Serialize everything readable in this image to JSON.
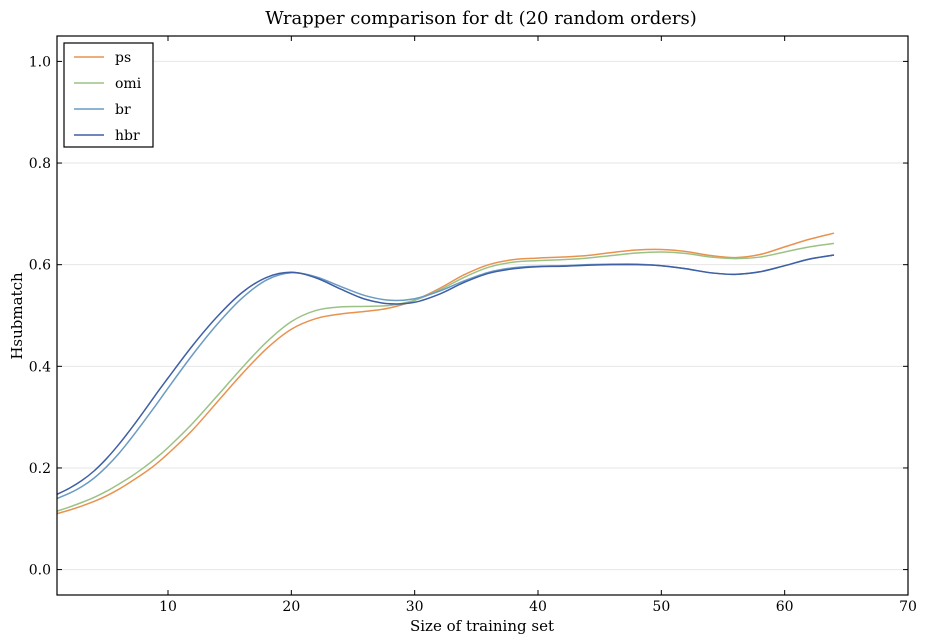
{
  "chart_data": {
    "type": "line",
    "title": "Wrapper comparison for dt (20 random orders)",
    "xlabel": "Size of training set",
    "ylabel": "Hsubmatch",
    "xlim": [
      1,
      70
    ],
    "ylim": [
      -0.05,
      1.05
    ],
    "xticks": [
      10,
      20,
      30,
      40,
      50,
      60,
      70
    ],
    "yticks": [
      0.0,
      0.2,
      0.4,
      0.6,
      0.8,
      1.0
    ],
    "xtick_labels": [
      "10",
      "20",
      "30",
      "40",
      "50",
      "60",
      "70"
    ],
    "ytick_labels": [
      "0.0",
      "0.2",
      "0.4",
      "0.6",
      "0.8",
      "1.0"
    ],
    "grid": "horizontal",
    "legend_position": "top-left",
    "series": [
      {
        "name": "ps",
        "color": "#e8924f",
        "x": [
          1,
          2,
          3,
          4,
          5,
          6,
          7,
          8,
          9,
          10,
          12,
          14,
          16,
          18,
          20,
          22,
          24,
          26,
          28,
          30,
          32,
          34,
          36,
          38,
          40,
          42,
          44,
          46,
          48,
          50,
          52,
          54,
          56,
          58,
          60,
          62,
          64
        ],
        "y": [
          0.11,
          0.117,
          0.125,
          0.134,
          0.145,
          0.158,
          0.173,
          0.189,
          0.207,
          0.228,
          0.275,
          0.33,
          0.385,
          0.435,
          0.473,
          0.494,
          0.503,
          0.508,
          0.515,
          0.53,
          0.553,
          0.58,
          0.6,
          0.61,
          0.613,
          0.615,
          0.618,
          0.624,
          0.629,
          0.63,
          0.626,
          0.618,
          0.614,
          0.62,
          0.635,
          0.65,
          0.662
        ]
      },
      {
        "name": "omi",
        "color": "#9bc285",
        "x": [
          1,
          2,
          3,
          4,
          5,
          6,
          7,
          8,
          9,
          10,
          12,
          14,
          16,
          18,
          20,
          22,
          24,
          26,
          28,
          30,
          32,
          34,
          36,
          38,
          40,
          42,
          44,
          46,
          48,
          50,
          52,
          54,
          56,
          58,
          60,
          62,
          64
        ],
        "y": [
          0.115,
          0.123,
          0.132,
          0.142,
          0.154,
          0.168,
          0.183,
          0.2,
          0.219,
          0.24,
          0.288,
          0.342,
          0.397,
          0.448,
          0.488,
          0.51,
          0.517,
          0.518,
          0.52,
          0.53,
          0.55,
          0.575,
          0.595,
          0.605,
          0.608,
          0.61,
          0.613,
          0.618,
          0.623,
          0.625,
          0.622,
          0.615,
          0.612,
          0.615,
          0.625,
          0.635,
          0.642
        ]
      },
      {
        "name": "br",
        "color": "#6a9bc3",
        "x": [
          1,
          2,
          3,
          4,
          5,
          6,
          7,
          8,
          9,
          10,
          12,
          14,
          16,
          18,
          20,
          22,
          24,
          26,
          28,
          30,
          32,
          34,
          36,
          38,
          40,
          42,
          44,
          46,
          48,
          50,
          52,
          54,
          56,
          58,
          60,
          62,
          64
        ],
        "y": [
          0.14,
          0.15,
          0.163,
          0.18,
          0.202,
          0.228,
          0.258,
          0.29,
          0.323,
          0.357,
          0.423,
          0.483,
          0.534,
          0.57,
          0.584,
          0.576,
          0.557,
          0.539,
          0.53,
          0.533,
          0.548,
          0.568,
          0.585,
          0.594,
          0.597,
          0.598,
          0.6,
          0.601,
          0.601,
          0.598,
          0.592,
          0.584,
          0.581,
          0.586,
          0.598,
          0.611,
          0.619
        ]
      },
      {
        "name": "hbr",
        "color": "#3f5fa5",
        "x": [
          1,
          2,
          3,
          4,
          5,
          6,
          7,
          8,
          9,
          10,
          12,
          14,
          16,
          18,
          20,
          22,
          24,
          26,
          28,
          30,
          32,
          34,
          36,
          38,
          40,
          42,
          44,
          46,
          48,
          50,
          52,
          54,
          56,
          58,
          60,
          62,
          64
        ],
        "y": [
          0.148,
          0.16,
          0.175,
          0.194,
          0.218,
          0.246,
          0.277,
          0.31,
          0.344,
          0.377,
          0.441,
          0.498,
          0.545,
          0.575,
          0.585,
          0.574,
          0.552,
          0.532,
          0.523,
          0.526,
          0.542,
          0.565,
          0.583,
          0.592,
          0.596,
          0.597,
          0.599,
          0.6,
          0.6,
          0.598,
          0.592,
          0.584,
          0.581,
          0.586,
          0.598,
          0.611,
          0.619
        ]
      }
    ]
  }
}
